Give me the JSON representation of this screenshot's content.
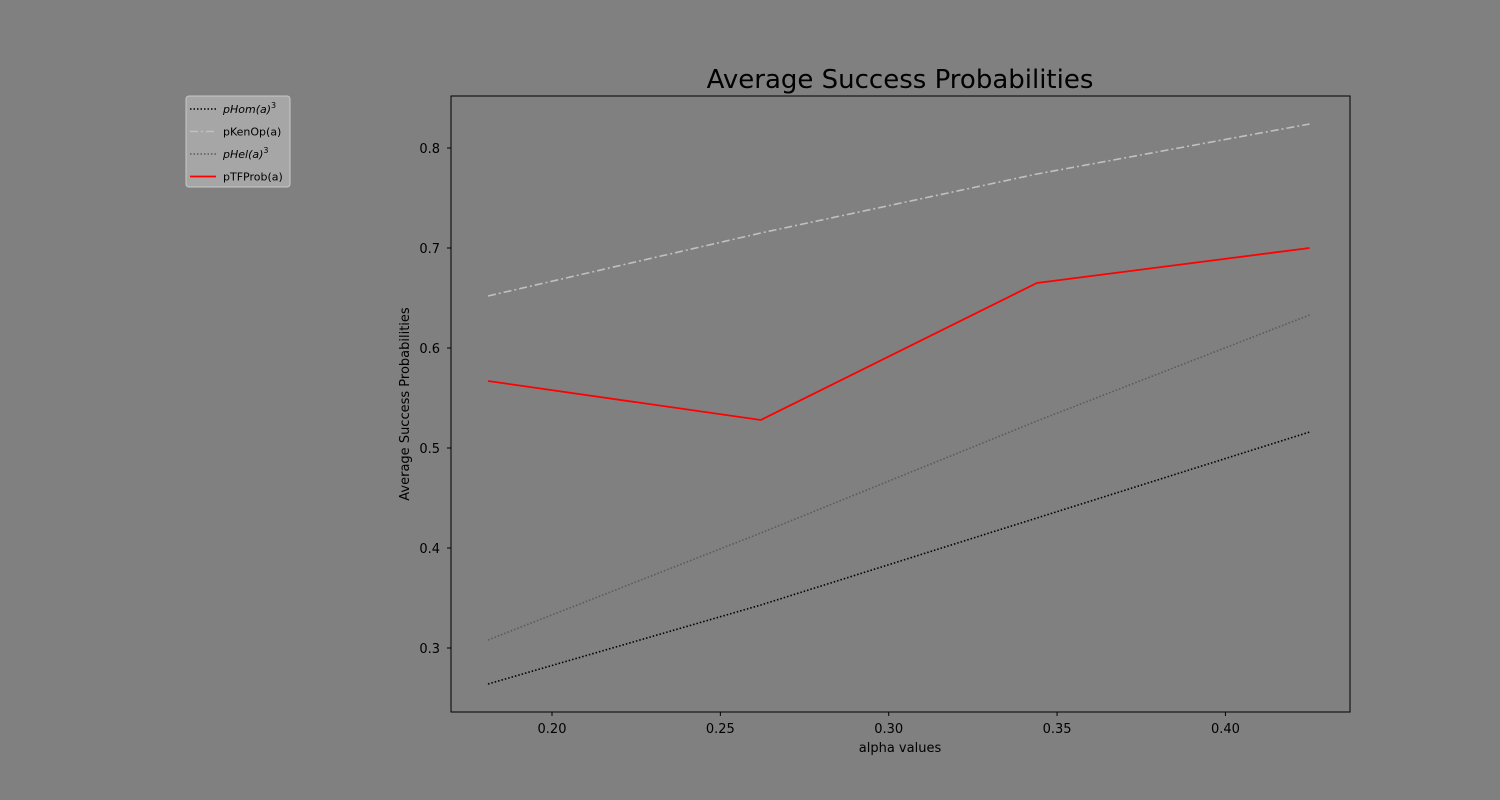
{
  "chart_data": {
    "type": "line",
    "title": "Average Success Probabilities",
    "xlabel": "alpha values",
    "ylabel": "Average Success Probabilities",
    "xlim": [
      0.17,
      0.437
    ],
    "ylim": [
      0.236,
      0.852
    ],
    "xticks": [
      0.2,
      0.25,
      0.3,
      0.35,
      0.4
    ],
    "xtick_labels": [
      "0.20",
      "0.25",
      "0.30",
      "0.35",
      "0.40"
    ],
    "yticks": [
      0.3,
      0.4,
      0.5,
      0.6,
      0.7,
      0.8
    ],
    "ytick_labels": [
      "0.3",
      "0.4",
      "0.5",
      "0.6",
      "0.7",
      "0.8"
    ],
    "x": [
      0.181,
      0.262,
      0.344,
      0.425
    ],
    "grid": false,
    "legend_position": "upper-left, outside axes",
    "background": "#808080",
    "series": [
      {
        "name": "pHom(a)^3",
        "legend_base": "pHom(a)",
        "legend_sup": "3",
        "legend_italic": true,
        "values": [
          0.264,
          0.343,
          0.43,
          0.516
        ],
        "color": "#000000",
        "style": "dotted"
      },
      {
        "name": "pKenOp(a)",
        "legend_base": "pKenOp(a)",
        "legend_sup": "",
        "legend_italic": false,
        "values": [
          0.652,
          0.715,
          0.774,
          0.824
        ],
        "color": "#c0c0c0",
        "style": "dashdot"
      },
      {
        "name": "pHel(a)^3",
        "legend_base": "pHel(a)",
        "legend_sup": "3",
        "legend_italic": true,
        "values": [
          0.308,
          0.415,
          0.527,
          0.633
        ],
        "color": "#5a5a5a",
        "style": "dotted"
      },
      {
        "name": "pTFProb(a)",
        "legend_base": "pTFProb(a)",
        "legend_sup": "",
        "legend_italic": false,
        "values": [
          0.567,
          0.528,
          0.665,
          0.7
        ],
        "color": "#ff0000",
        "style": "solid"
      }
    ]
  }
}
